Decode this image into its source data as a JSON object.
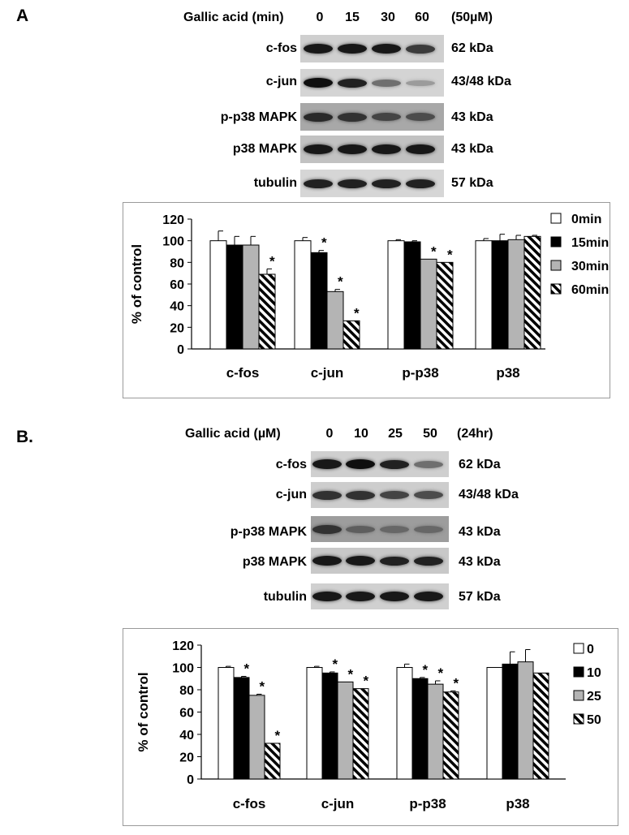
{
  "panels": [
    {
      "label": "A",
      "header_prefix": "Gallic acid (min)",
      "columns": [
        "0",
        "15",
        "30",
        "60"
      ],
      "header_suffix": "(50µM)",
      "blots": [
        {
          "label": "c-fos",
          "kda": "62 kDa",
          "bg": "#cfcfcf",
          "intensity": [
            0.95,
            0.95,
            0.95,
            0.75
          ]
        },
        {
          "label": "c-jun",
          "kda": "43/48 kDa",
          "bg": "#d4d4d4",
          "intensity": [
            1.0,
            0.9,
            0.45,
            0.2
          ]
        },
        {
          "label": "p-p38 MAPK",
          "kda": "43 kDa",
          "bg": "#a8a8a8",
          "intensity": [
            0.85,
            0.8,
            0.7,
            0.65
          ]
        },
        {
          "label": "p38 MAPK",
          "kda": "43 kDa",
          "bg": "#c2c2c2",
          "intensity": [
            0.95,
            0.95,
            0.95,
            0.95
          ]
        },
        {
          "label": "tubulin",
          "kda": "57 kDa",
          "bg": "#d6d6d6",
          "intensity": [
            0.9,
            0.9,
            0.9,
            0.9
          ]
        }
      ],
      "chart_data": {
        "type": "bar",
        "categories": [
          "c-fos",
          "c-jun",
          "p-p38",
          "p38"
        ],
        "ylabel": "% of control",
        "ylim": [
          0,
          120
        ],
        "yticks": [
          0,
          20,
          40,
          60,
          80,
          100,
          120
        ],
        "legend_position": "right",
        "series": [
          {
            "name": "0min",
            "pattern": "white",
            "values": [
              100,
              100,
              100,
              100
            ],
            "errors": [
              9,
              3,
              1,
              2
            ],
            "sig": [
              false,
              false,
              false,
              false
            ]
          },
          {
            "name": "15min",
            "pattern": "black",
            "values": [
              96,
              89,
              99,
              100
            ],
            "errors": [
              8,
              2,
              1,
              6
            ],
            "sig": [
              false,
              true,
              false,
              false
            ]
          },
          {
            "name": "30min",
            "pattern": "gray",
            "values": [
              96,
              53,
              83,
              101
            ],
            "errors": [
              8,
              2,
              0,
              4
            ],
            "sig": [
              false,
              true,
              true,
              false
            ]
          },
          {
            "name": "60min",
            "pattern": "hatch",
            "values": [
              69,
              26,
              80,
              104
            ],
            "errors": [
              5,
              0,
              0,
              1
            ],
            "sig": [
              true,
              true,
              true,
              false
            ]
          }
        ],
        "sig_marker": "*"
      }
    },
    {
      "label": "B.",
      "header_prefix": "Gallic acid (µM)",
      "columns": [
        "0",
        "10",
        "25",
        "50"
      ],
      "header_suffix": "(24hr)",
      "blots": [
        {
          "label": "c-fos",
          "kda": "62 kDa",
          "bg": "#cfcfcf",
          "intensity": [
            0.95,
            1.0,
            0.9,
            0.45
          ]
        },
        {
          "label": "c-jun",
          "kda": "43/48 kDa",
          "bg": "#cdcdcd",
          "intensity": [
            0.8,
            0.8,
            0.7,
            0.65
          ]
        },
        {
          "label": "p-p38 MAPK",
          "kda": "43 kDa",
          "bg": "#9d9d9d",
          "intensity": [
            0.8,
            0.55,
            0.5,
            0.5
          ]
        },
        {
          "label": "p38 MAPK",
          "kda": "43 kDa",
          "bg": "#c8c8c8",
          "intensity": [
            0.95,
            0.95,
            0.9,
            0.9
          ]
        },
        {
          "label": "tubulin",
          "kda": "57 kDa",
          "bg": "#d0d0d0",
          "intensity": [
            0.95,
            0.95,
            0.95,
            0.95
          ]
        }
      ],
      "chart_data": {
        "type": "bar",
        "categories": [
          "c-fos",
          "c-jun",
          "p-p38",
          "p38"
        ],
        "ylabel": "% of control",
        "ylim": [
          0,
          120
        ],
        "yticks": [
          0,
          20,
          40,
          60,
          80,
          100,
          120
        ],
        "legend_position": "right",
        "series": [
          {
            "name": "0",
            "pattern": "white",
            "values": [
              100,
              100,
              100,
              100
            ],
            "errors": [
              1,
              1,
              3,
              0
            ],
            "sig": [
              false,
              false,
              false,
              false
            ]
          },
          {
            "name": "10",
            "pattern": "black",
            "values": [
              91,
              95,
              90,
              103
            ],
            "errors": [
              1,
              1,
              1,
              11
            ],
            "sig": [
              true,
              true,
              true,
              false
            ]
          },
          {
            "name": "25",
            "pattern": "gray",
            "values": [
              75,
              87,
              85,
              105
            ],
            "errors": [
              1,
              0,
              3,
              11
            ],
            "sig": [
              true,
              true,
              true,
              false
            ]
          },
          {
            "name": "50",
            "pattern": "hatch",
            "values": [
              32,
              81,
              78,
              95
            ],
            "errors": [
              0,
              0,
              1,
              0
            ],
            "sig": [
              true,
              true,
              true,
              false
            ]
          }
        ],
        "sig_marker": "*"
      }
    }
  ]
}
